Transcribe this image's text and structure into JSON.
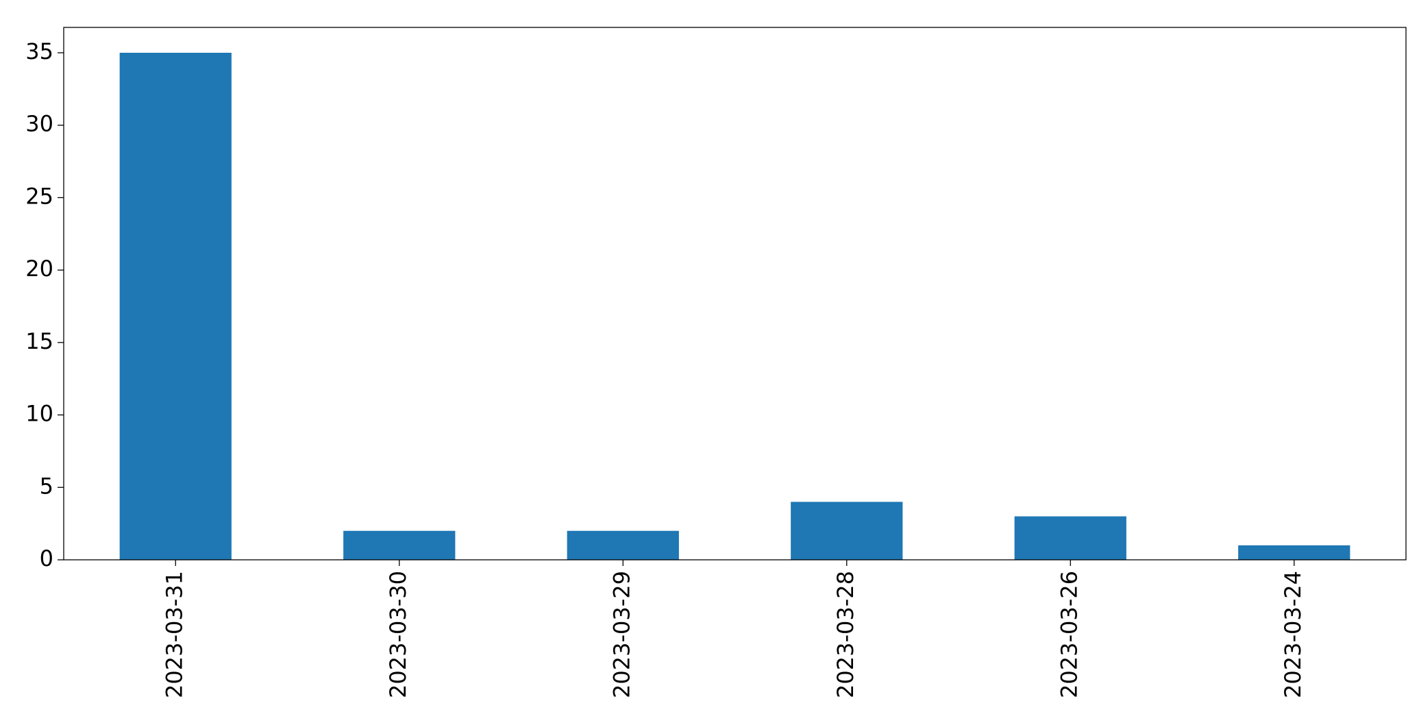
{
  "chart_data": {
    "type": "bar",
    "categories": [
      "2023-03-31",
      "2023-03-30",
      "2023-03-29",
      "2023-03-28",
      "2023-03-26",
      "2023-03-24"
    ],
    "values": [
      35,
      2,
      2,
      4,
      3,
      1
    ],
    "color": "#1f77b4",
    "ylim": [
      0,
      36.75
    ],
    "yticks": [
      0,
      5,
      10,
      15,
      20,
      25,
      30,
      35
    ],
    "grid": false
  }
}
